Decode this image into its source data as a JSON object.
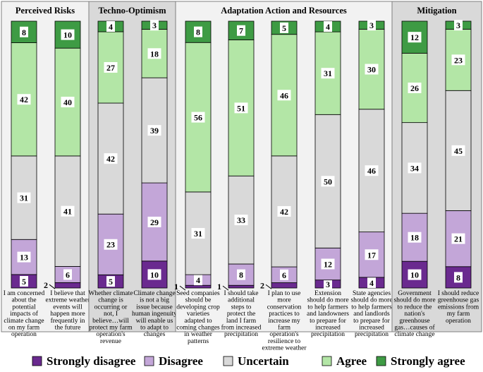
{
  "chart_data": {
    "type": "stacked-bar",
    "legend_position": "bottom",
    "series_names": [
      "Strongly disagree",
      "Disagree",
      "Uncertain",
      "Agree",
      "Strongly agree"
    ],
    "colors": {
      "strongly_disagree": "#6a2a8f",
      "disagree": "#c3a6d8",
      "uncertain": "#d9d9d9",
      "agree": "#b3e6a6",
      "strongly_agree": "#3e9b44",
      "panel_shaded": "#d9d9d9",
      "panel_plain": "#f2f2f2"
    },
    "panels": [
      {
        "title": "Perceived Risks",
        "shaded": false,
        "bars": [
          {
            "label": "I am concerned about the potential impacts of climate change on my farm operation",
            "values": [
              5,
              13,
              31,
              42,
              8
            ]
          },
          {
            "label": "I believe that extreme weather events will happen more frequently in the future",
            "values": [
              2,
              6,
              41,
              40,
              10
            ]
          }
        ]
      },
      {
        "title": "Techno-Optimism",
        "shaded": true,
        "bars": [
          {
            "label": "Whether climate change is occurring or not, I believe…will protect my farm operation's revenue",
            "values": [
              5,
              23,
              42,
              27,
              4
            ]
          },
          {
            "label": "Climate change is not a big issue because human ingenuity will enable us to adapt to changes",
            "values": [
              10,
              29,
              39,
              18,
              3
            ]
          }
        ]
      },
      {
        "title": "Adaptation Action and Resources",
        "shaded": false,
        "bars": [
          {
            "label": "Seed companies should be developing crop varieties adapted to coming changes in weather patterns",
            "values": [
              1,
              4,
              31,
              56,
              8
            ]
          },
          {
            "label": "I should take additional steps to protect the land I farm from increased precipitation",
            "values": [
              1,
              8,
              33,
              51,
              7
            ]
          },
          {
            "label": "I plan to use more conservation practices to increase my farm operation's resilience to extreme weather",
            "values": [
              2,
              6,
              42,
              46,
              5
            ]
          },
          {
            "label": "Extension should do more to help farmers and landowners to prepare for increased precipitation",
            "values": [
              3,
              12,
              50,
              31,
              4
            ]
          },
          {
            "label": "State agencies should do more to help farmers and landlords to prepare for increased precipitation",
            "values": [
              4,
              17,
              46,
              30,
              3
            ]
          }
        ]
      },
      {
        "title": "Mitigation",
        "shaded": true,
        "bars": [
          {
            "label": "Government should do more to reduce the nation's greenhouse gas…causes of climate change",
            "values": [
              10,
              18,
              34,
              26,
              12
            ]
          },
          {
            "label": "I should reduce greenhouse gas emissions from my farm operation",
            "values": [
              8,
              21,
              45,
              23,
              3
            ]
          }
        ]
      }
    ]
  }
}
